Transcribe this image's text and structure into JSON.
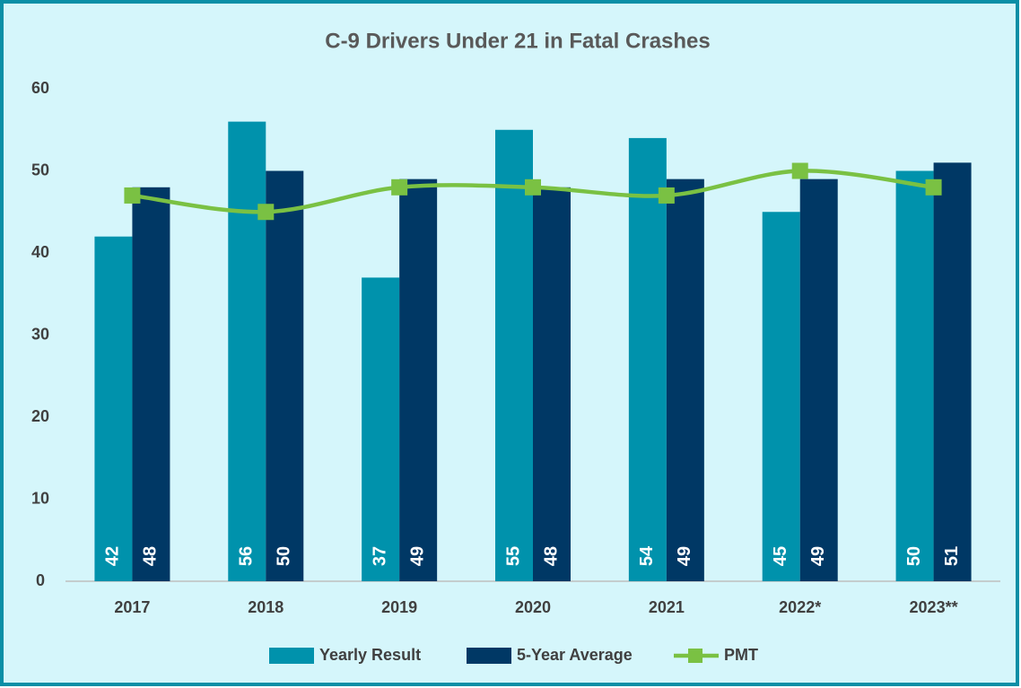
{
  "chart_data": {
    "type": "bar",
    "title": "C-9 Drivers Under 21 in Fatal Crashes",
    "categories": [
      "2017",
      "2018",
      "2019",
      "2020",
      "2021",
      "2022*",
      "2023**"
    ],
    "series": [
      {
        "name": "Yearly Result",
        "type": "bar",
        "color": "#0092ac",
        "values": [
          42,
          56,
          37,
          55,
          54,
          45,
          50
        ]
      },
      {
        "name": "5-Year Average",
        "type": "bar",
        "color": "#003865",
        "values": [
          48,
          50,
          49,
          48,
          49,
          49,
          51
        ]
      },
      {
        "name": "PMT",
        "type": "line",
        "color": "#7ac143",
        "values": [
          47,
          45,
          48,
          48,
          47,
          50,
          48
        ]
      }
    ],
    "ylim": [
      0,
      60
    ],
    "yticks": [
      0,
      10,
      20,
      30,
      40,
      50,
      60
    ],
    "grid": false,
    "legend": "bottom"
  }
}
